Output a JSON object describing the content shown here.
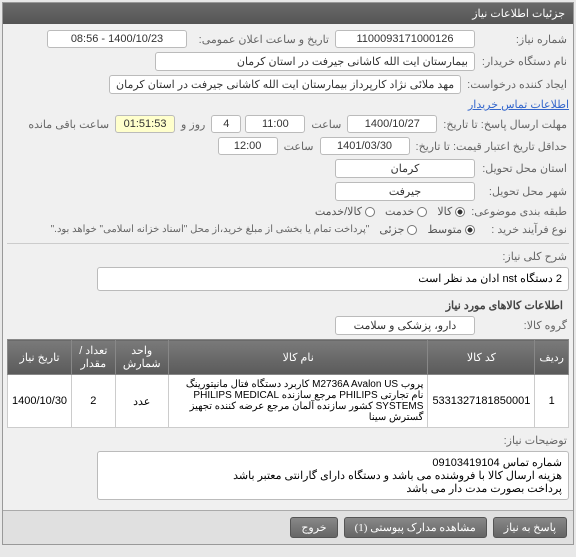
{
  "header": {
    "title": "جزئیات اطلاعات نیاز"
  },
  "need": {
    "number_lbl": "شماره نیاز:",
    "number": "1100093171000126",
    "announce_lbl": "تاریخ و ساعت اعلان عمومی:",
    "announce": "1400/10/23 - 08:56",
    "buyer_lbl": "نام دستگاه خریدار:",
    "buyer": "بیمارستان ایت الله کاشانی جیرفت در استان کرمان",
    "creator_lbl": "ایجاد کننده درخواست:",
    "creator": "مهد ملائی نژاد کارپرداز بیمارستان ایت الله کاشانی جیرفت در استان کرمان",
    "contact_link": "اطلاعات تماس خریدار",
    "deadline_lbl": "مهلت ارسال پاسخ: تا تاریخ:",
    "deadline_date": "1400/10/27",
    "time_lbl": "ساعت",
    "deadline_time": "11:00",
    "days_left": "4",
    "days_text": "روز و",
    "time_left": "01:51:53",
    "remain_text": "ساعت باقی مانده",
    "credit_lbl": "حداقل تاریخ اعتبار قیمت: تا تاریخ:",
    "credit_date": "1401/03/30",
    "credit_time": "12:00",
    "province_lbl": "استان محل تحویل:",
    "province": "کرمان",
    "city_lbl": "شهر محل تحویل:",
    "city": "جیرفت",
    "category_lbl": "طبقه بندی موضوعی:",
    "buy_type_lbl": "نوع فرآیند خرید :",
    "payment_note": "\"پرداخت تمام یا بخشی از مبلغ خرید،از محل \"اسناد خزانه اسلامی\" خواهد بود.\"",
    "radios_cat": [
      {
        "label": "کالا",
        "selected": true
      },
      {
        "label": "خدمت",
        "selected": false
      },
      {
        "label": "کالا/خدمت",
        "selected": false
      }
    ],
    "radios_buy": [
      {
        "label": "متوسط",
        "selected": true
      },
      {
        "label": "جزئی",
        "selected": false
      }
    ]
  },
  "desc": {
    "title_lbl": "شرح کلی نیاز:",
    "text": "2 دستگاه nst ادان مد نظر است"
  },
  "items": {
    "section_title": "اطلاعات کالاهای مورد نیاز",
    "group_lbl": "گروه کالا:",
    "group": "دارو، پزشکی و سلامت",
    "columns": [
      "ردیف",
      "کد کالا",
      "نام کالا",
      "واحد شمارش",
      "تعداد / مقدار",
      "تاریخ نیاز"
    ],
    "rows": [
      [
        "1",
        "5331327181850001",
        "پروب M2736A Avalon US کاربرد دستگاه فتال مانیتورینگ نام تجارتی PHILIPS مرجع سازنده PHILIPS MEDICAL SYSTEMS کشور سازنده آلمان مرجع عرضه کننده تجهیز گسترش سینا",
        "عدد",
        "2",
        "1400/10/30"
      ]
    ]
  },
  "notes": {
    "lbl": "توضیحات نیاز:",
    "lines": [
      "شماره تماس 09103419104",
      "هزینه ارسال کالا با فروشنده می باشد و دستگاه دارای گارانتی معتبر باشد",
      "پرداخت بصورت مدت دار می باشد"
    ]
  },
  "footer": {
    "respond": "پاسخ به نیاز",
    "attachments": "مشاهده مدارک پیوستی (1)",
    "close": "خروج"
  }
}
